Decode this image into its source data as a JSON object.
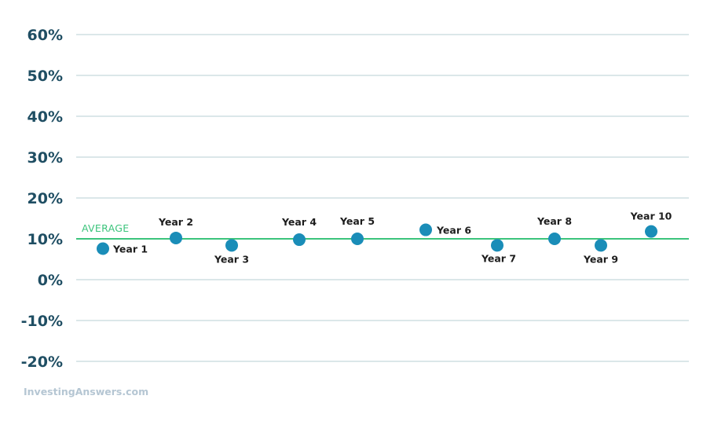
{
  "chart_data": {
    "type": "scatter",
    "y_ticks": [
      "60%",
      "50%",
      "40%",
      "30%",
      "20%",
      "10%",
      "0%",
      "-10%",
      "-20%"
    ],
    "y_tick_values": [
      60,
      50,
      40,
      30,
      20,
      10,
      0,
      -10,
      -20
    ],
    "ylim": [
      -20,
      60
    ],
    "grid": true,
    "average": {
      "label": "AVERAGE",
      "value": 10
    },
    "points": [
      {
        "label": "Year 1",
        "value": 7.6
      },
      {
        "label": "Year 2",
        "value": 10.2
      },
      {
        "label": "Year 3",
        "value": 8.4
      },
      {
        "label": "Year 4",
        "value": 9.8
      },
      {
        "label": "Year 5",
        "value": 10.0
      },
      {
        "label": "Year 6",
        "value": 12.2
      },
      {
        "label": "Year 7",
        "value": 8.4
      },
      {
        "label": "Year 8",
        "value": 10.0
      },
      {
        "label": "Year 9",
        "value": 8.4
      },
      {
        "label": "Year 10",
        "value": 11.8
      }
    ],
    "colors": {
      "point": "#1a8db8",
      "average_line": "#3cc47c",
      "grid": "#b7cfd3",
      "tick_text": "#1f4e63"
    }
  },
  "source_label": "InvestingAnswers.com"
}
